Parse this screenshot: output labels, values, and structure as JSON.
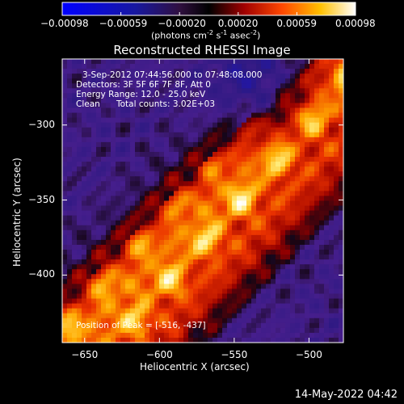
{
  "chart_data": {
    "type": "heatmap",
    "title": "Reconstructed RHESSI Image",
    "xlabel": "Heliocentric X (arcsec)",
    "ylabel": "Heliocentric Y (arcsec)",
    "xlim": [
      -665,
      -477
    ],
    "ylim": [
      -445,
      -256
    ],
    "x_ticks": [
      -650,
      -600,
      -550,
      -500
    ],
    "y_ticks": [
      -300,
      -350,
      -400
    ],
    "colorbar": {
      "colormap": "red-temperature",
      "range": [
        -0.00098,
        0.00098
      ],
      "tick_labels": [
        "-0.00098",
        "-0.00059",
        "-0.00020",
        "0.00020",
        "0.00059",
        "0.00098"
      ],
      "unit_label_parts": [
        "(photons cm",
        "-2",
        " s",
        "-1",
        " asec",
        "-2",
        ")"
      ]
    },
    "annotations": {
      "time_range": "3-Sep-2012 07:44:56.000 to 07:48:08.000",
      "detectors": "Detectors: 3F 5F 6F 7F 8F, Att 0",
      "energy_range": "Energy Range: 12.0 - 25.0 keV",
      "method": "Clean",
      "total_counts": "Total counts: 3.02E+03",
      "peak_position": "Position of Peak = [-516, -437]"
    },
    "timestamp": "14-May-2022 04:42"
  }
}
